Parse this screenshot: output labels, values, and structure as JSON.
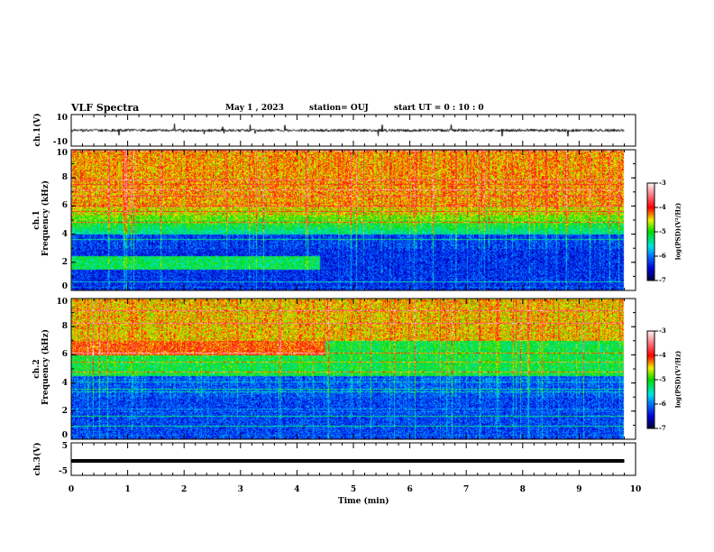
{
  "header": {
    "title": "VLF Spectra",
    "date": "May 1 , 2023",
    "station": "station= OUJ",
    "start": "start  UT =   0 : 10 : 0"
  },
  "chart_data": [
    {
      "type": "line",
      "name": "ch1-waveform",
      "ylabel": "ch.1(V)",
      "ylim": [
        -10,
        10
      ],
      "yticks": [
        "10",
        "-10"
      ],
      "xlim": [
        0,
        10
      ],
      "data_end_min": 9.8,
      "baseline": 0,
      "noise_amplitude": 2
    },
    {
      "type": "heatmap",
      "name": "ch1-spectrogram",
      "ylabel": "ch.1\nFrequency (kHz)",
      "ylabel_line1": "ch.1",
      "ylabel_line2": "Frequency (kHz)",
      "ylim": [
        0,
        10
      ],
      "yticks": [
        "0",
        "2",
        "4",
        "6",
        "8",
        "10"
      ],
      "xlim": [
        0,
        10
      ],
      "data_end_min": 9.8,
      "colorbar": {
        "label": "log(PSD)(V²/Hz)",
        "range": [
          -7,
          -3
        ],
        "ticks": [
          "-3",
          "-4",
          "-5",
          "-6",
          "-7"
        ]
      },
      "description_levels": {
        "above_6kHz": -4.4,
        "4_to_6kHz": -5.6,
        "below_4kHz": -6.4
      },
      "band": {
        "freq_khz": 2,
        "until_min": 4.4,
        "level": -5.3
      }
    },
    {
      "type": "heatmap",
      "name": "ch2-spectrogram",
      "ylabel_line1": "ch.2",
      "ylabel_line2": "Frequency (kHz)",
      "ylim": [
        0,
        10
      ],
      "yticks": [
        "0",
        "2",
        "4",
        "6",
        "8",
        "10"
      ],
      "xlim": [
        0,
        10
      ],
      "data_end_min": 9.8,
      "colorbar": {
        "label": "log(PSD)(V²/Hz)",
        "range": [
          -7,
          -3
        ],
        "ticks": [
          "-3",
          "-4",
          "-5",
          "-6",
          "-7"
        ]
      },
      "band": {
        "freq_khz": 6.5,
        "until_min": 4.5,
        "level": -4.3
      }
    },
    {
      "type": "line",
      "name": "ch3-waveform",
      "ylabel": "ch.3(V)",
      "ylim": [
        -5,
        5
      ],
      "yticks": [
        "5",
        "-5"
      ],
      "xlim": [
        0,
        10
      ],
      "data_end_min": 9.8,
      "value": 0
    },
    {
      "xlabel": "Time (min)",
      "xticks": [
        "0",
        "1",
        "2",
        "3",
        "4",
        "5",
        "6",
        "7",
        "8",
        "9",
        "10"
      ]
    }
  ]
}
